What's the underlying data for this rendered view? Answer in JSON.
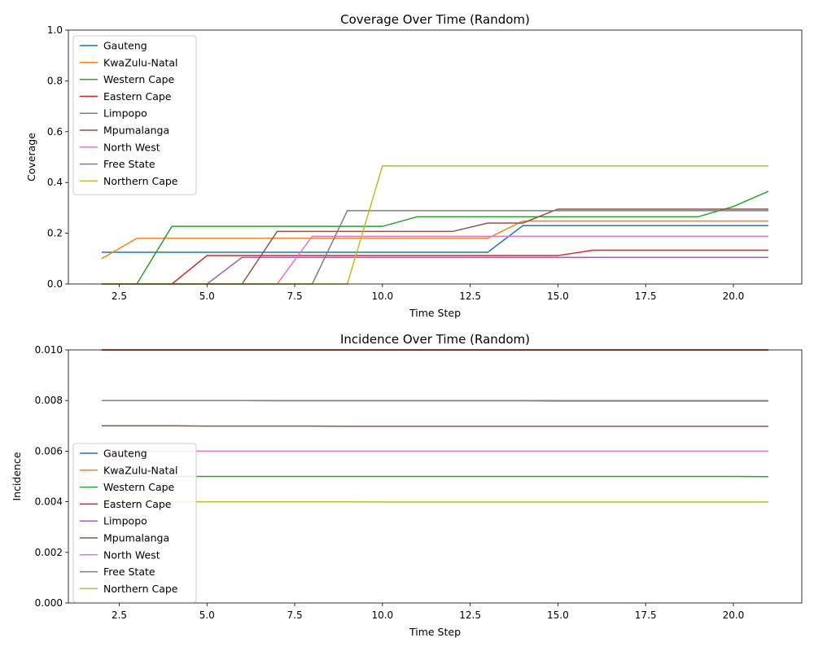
{
  "figure": {
    "legend_placement_top": "upper left",
    "legend_placement_bottom": "center left"
  },
  "chart_data": [
    {
      "type": "line",
      "title": "Coverage Over Time (Random)",
      "xlabel": "Time Step",
      "ylabel": "Coverage",
      "xlim": [
        1.05,
        21.95
      ],
      "ylim": [
        0,
        1.0
      ],
      "xticks": [
        2.5,
        5.0,
        7.5,
        10.0,
        12.5,
        15.0,
        17.5,
        20.0
      ],
      "xtick_labels": [
        "2.5",
        "5.0",
        "7.5",
        "10.0",
        "12.5",
        "15.0",
        "17.5",
        "20.0"
      ],
      "yticks": [
        0,
        0.2,
        0.4,
        0.6,
        0.8,
        1.0
      ],
      "ytick_labels": [
        "0.0",
        "0.2",
        "0.4",
        "0.6",
        "0.8",
        "1.0"
      ],
      "legend": "upper left",
      "x": [
        2,
        3,
        4,
        5,
        6,
        7,
        8,
        9,
        10,
        11,
        12,
        13,
        14,
        15,
        16,
        17,
        18,
        19,
        20,
        21
      ],
      "series": [
        {
          "name": "Gauteng",
          "color": "#1f77b4",
          "values": [
            0.125,
            0.125,
            0.125,
            0.125,
            0.125,
            0.125,
            0.125,
            0.125,
            0.125,
            0.125,
            0.125,
            0.125,
            0.23,
            0.23,
            0.23,
            0.23,
            0.23,
            0.23,
            0.23,
            0.23
          ]
        },
        {
          "name": "KwaZulu-Natal",
          "color": "#ff7f0e",
          "values": [
            0.1,
            0.18,
            0.18,
            0.18,
            0.18,
            0.18,
            0.18,
            0.18,
            0.18,
            0.18,
            0.18,
            0.18,
            0.248,
            0.248,
            0.248,
            0.248,
            0.248,
            0.248,
            0.248,
            0.248
          ]
        },
        {
          "name": "Western Cape",
          "color": "#2ca02c",
          "values": [
            0,
            0,
            0.227,
            0.227,
            0.227,
            0.227,
            0.227,
            0.227,
            0.227,
            0.265,
            0.265,
            0.265,
            0.265,
            0.265,
            0.265,
            0.265,
            0.265,
            0.265,
            0.305,
            0.365
          ]
        },
        {
          "name": "Eastern Cape",
          "color": "#d62728",
          "values": [
            0,
            0,
            0,
            0.112,
            0.112,
            0.112,
            0.112,
            0.112,
            0.112,
            0.112,
            0.112,
            0.112,
            0.112,
            0.112,
            0.133,
            0.133,
            0.133,
            0.133,
            0.133,
            0.133
          ]
        },
        {
          "name": "Limpopo",
          "color": "#9467bd",
          "values": [
            0,
            0,
            0,
            0,
            0.105,
            0.105,
            0.105,
            0.105,
            0.105,
            0.105,
            0.105,
            0.105,
            0.105,
            0.105,
            0.105,
            0.105,
            0.105,
            0.105,
            0.105,
            0.105
          ]
        },
        {
          "name": "Mpumalanga",
          "color": "#8c564b",
          "values": [
            0,
            0,
            0,
            0,
            0,
            0.207,
            0.207,
            0.207,
            0.207,
            0.207,
            0.207,
            0.24,
            0.24,
            0.295,
            0.295,
            0.295,
            0.295,
            0.295,
            0.295,
            0.295
          ]
        },
        {
          "name": "North West",
          "color": "#e377c2",
          "values": [
            0,
            0,
            0,
            0,
            0,
            0,
            0.188,
            0.188,
            0.188,
            0.188,
            0.188,
            0.188,
            0.188,
            0.188,
            0.188,
            0.188,
            0.188,
            0.188,
            0.188,
            0.188
          ]
        },
        {
          "name": "Free State",
          "color": "#7f7f7f",
          "values": [
            0,
            0,
            0,
            0,
            0,
            0,
            0,
            0.289,
            0.289,
            0.289,
            0.289,
            0.289,
            0.289,
            0.289,
            0.289,
            0.289,
            0.289,
            0.289,
            0.289,
            0.289
          ]
        },
        {
          "name": "Northern Cape",
          "color": "#bcbd22",
          "values": [
            0,
            0,
            0,
            0,
            0,
            0,
            0,
            0,
            0.465,
            0.465,
            0.465,
            0.465,
            0.465,
            0.465,
            0.465,
            0.465,
            0.465,
            0.465,
            0.465,
            0.465
          ]
        }
      ]
    },
    {
      "type": "line",
      "title": "Incidence Over Time (Random)",
      "xlabel": "Time Step",
      "ylabel": "Incidence",
      "xlim": [
        1.05,
        21.95
      ],
      "ylim": [
        0,
        0.01
      ],
      "xticks": [
        2.5,
        5.0,
        7.5,
        10.0,
        12.5,
        15.0,
        17.5,
        20.0
      ],
      "xtick_labels": [
        "2.5",
        "5.0",
        "7.5",
        "10.0",
        "12.5",
        "15.0",
        "17.5",
        "20.0"
      ],
      "yticks": [
        0,
        0.002,
        0.004,
        0.006,
        0.008,
        0.01
      ],
      "ytick_labels": [
        "0.000",
        "0.002",
        "0.004",
        "0.006",
        "0.008",
        "0.010"
      ],
      "legend": "center left",
      "x": [
        2,
        3,
        4,
        5,
        6,
        7,
        8,
        9,
        10,
        11,
        12,
        13,
        14,
        15,
        16,
        17,
        18,
        19,
        20,
        21
      ],
      "series": [
        {
          "name": "Gauteng",
          "color": "#1f77b4",
          "values": [
            0.01,
            0.01,
            0.01,
            0.01,
            0.01,
            0.01,
            0.01,
            0.01,
            0.01,
            0.01,
            0.01,
            0.01,
            0.01,
            0.01,
            0.01,
            0.01,
            0.01,
            0.01,
            0.01,
            0.01
          ]
        },
        {
          "name": "KwaZulu-Natal",
          "color": "#ff7f0e",
          "values": [
            0.01,
            0.01,
            0.01,
            0.01,
            0.01,
            0.01,
            0.01,
            0.01,
            0.01,
            0.01,
            0.01,
            0.01,
            0.01,
            0.01,
            0.01,
            0.01,
            0.01,
            0.01,
            0.01,
            0.01
          ]
        },
        {
          "name": "Western Cape",
          "color": "#2ca02c",
          "values": [
            0.005,
            0.005,
            0.005,
            0.005,
            0.005,
            0.005,
            0.005,
            0.005,
            0.005,
            0.005,
            0.005,
            0.005,
            0.005,
            0.005,
            0.005,
            0.005,
            0.005,
            0.005,
            0.005,
            0.00499
          ]
        },
        {
          "name": "Eastern Cape",
          "color": "#d62728",
          "values": [
            0.01,
            0.01,
            0.01,
            0.01,
            0.01,
            0.01,
            0.01,
            0.01,
            0.01,
            0.01,
            0.01,
            0.01,
            0.01,
            0.01,
            0.01,
            0.01,
            0.01,
            0.01,
            0.01,
            0.01
          ]
        },
        {
          "name": "Limpopo",
          "color": "#9467bd",
          "values": [
            0.008,
            0.008,
            0.008,
            0.008,
            0.008,
            0.00799,
            0.00799,
            0.00799,
            0.00799,
            0.00799,
            0.00799,
            0.00799,
            0.00799,
            0.00798,
            0.00798,
            0.00798,
            0.00798,
            0.00798,
            0.00798,
            0.00798
          ]
        },
        {
          "name": "Mpumalanga",
          "color": "#8c564b",
          "values": [
            0.007,
            0.007,
            0.007,
            0.00699,
            0.00699,
            0.00699,
            0.00699,
            0.00698,
            0.00698,
            0.00698,
            0.00698,
            0.00698,
            0.00698,
            0.00698,
            0.00698,
            0.00698,
            0.00698,
            0.00698,
            0.00698,
            0.00698
          ]
        },
        {
          "name": "North West",
          "color": "#e377c2",
          "values": [
            0.006,
            0.006,
            0.006,
            0.006,
            0.006,
            0.006,
            0.006,
            0.006,
            0.006,
            0.006,
            0.006,
            0.006,
            0.006,
            0.006,
            0.006,
            0.006,
            0.006,
            0.006,
            0.006,
            0.006
          ]
        },
        {
          "name": "Free State",
          "color": "#7f7f7f",
          "values": [
            0.008,
            0.008,
            0.008,
            0.008,
            0.008,
            0.008,
            0.008,
            0.008,
            0.008,
            0.008,
            0.008,
            0.008,
            0.008,
            0.008,
            0.008,
            0.008,
            0.008,
            0.008,
            0.008,
            0.008
          ]
        },
        {
          "name": "Northern Cape",
          "color": "#bcbd22",
          "values": [
            0.004,
            0.004,
            0.004,
            0.004,
            0.004,
            0.004,
            0.004,
            0.004,
            0.00399,
            0.00399,
            0.00399,
            0.00399,
            0.00399,
            0.00399,
            0.00399,
            0.00399,
            0.00399,
            0.00399,
            0.00399,
            0.00399
          ]
        }
      ]
    }
  ]
}
